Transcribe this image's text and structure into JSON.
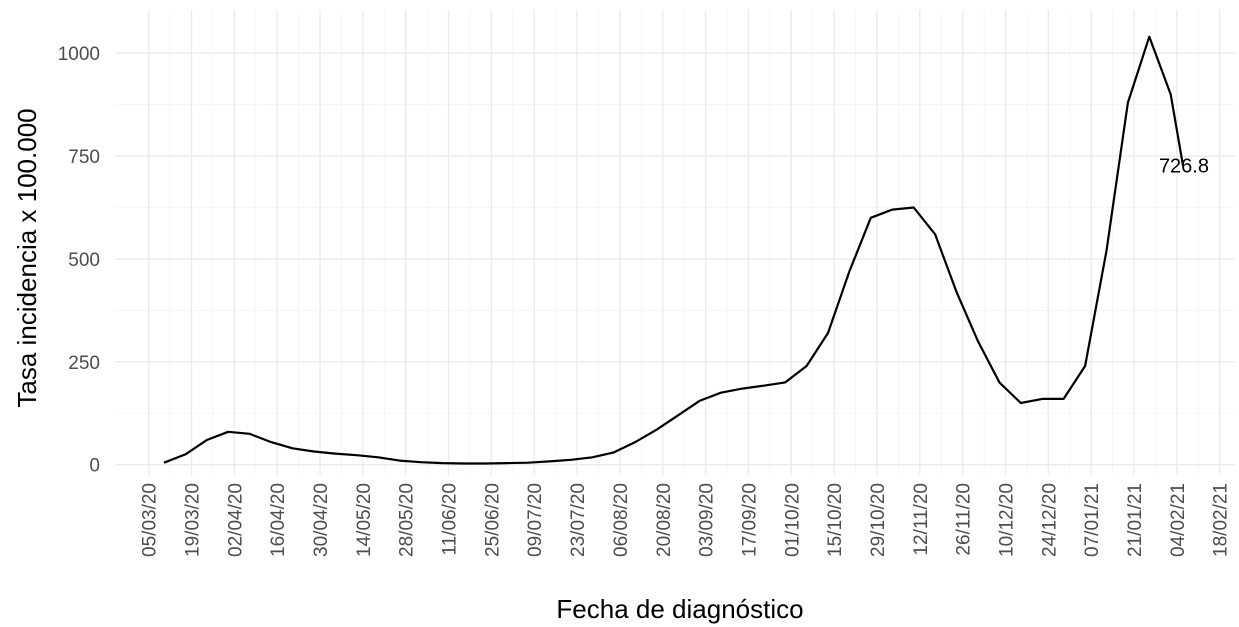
{
  "chart_data": {
    "type": "line",
    "x_label": "Fecha de diagnóstico",
    "y_label": "Tasa incidencia x 100.000",
    "x": [
      "10/03/20",
      "17/03/20",
      "24/03/20",
      "31/03/20",
      "07/04/20",
      "14/04/20",
      "21/04/20",
      "28/04/20",
      "05/05/20",
      "12/05/20",
      "19/05/20",
      "26/05/20",
      "02/06/20",
      "09/06/20",
      "16/06/20",
      "23/06/20",
      "30/06/20",
      "07/07/20",
      "14/07/20",
      "21/07/20",
      "28/07/20",
      "04/08/20",
      "11/08/20",
      "18/08/20",
      "25/08/20",
      "01/09/20",
      "08/09/20",
      "15/09/20",
      "22/09/20",
      "29/09/20",
      "06/10/20",
      "13/10/20",
      "20/10/20",
      "27/10/20",
      "03/11/20",
      "10/11/20",
      "17/11/20",
      "24/11/20",
      "01/12/20",
      "08/12/20",
      "15/12/20",
      "22/12/20",
      "29/12/20",
      "05/01/21",
      "12/01/21",
      "19/01/21",
      "26/01/21",
      "02/02/21",
      "06/02/21"
    ],
    "series": [
      {
        "name": "Tasa",
        "color": "#000000",
        "values": [
          5,
          25,
          60,
          80,
          75,
          55,
          40,
          32,
          27,
          23,
          18,
          10,
          6,
          4,
          3,
          3,
          4,
          5,
          8,
          12,
          18,
          30,
          55,
          85,
          120,
          155,
          175,
          185,
          192,
          200,
          240,
          320,
          470,
          600,
          620,
          625,
          560,
          420,
          300,
          200,
          150,
          160,
          160,
          240,
          520,
          880,
          1040,
          900,
          726.8
        ],
        "value_labels": {
          "48": "726.8"
        }
      }
    ],
    "xlim": [
      "23/02/20",
      "23/02/21"
    ],
    "xticks": [
      "05/03/20",
      "19/03/20",
      "02/04/20",
      "16/04/20",
      "30/04/20",
      "14/05/20",
      "28/05/20",
      "11/06/20",
      "25/06/20",
      "09/07/20",
      "23/07/20",
      "06/08/20",
      "20/08/20",
      "03/09/20",
      "17/09/20",
      "01/10/20",
      "15/10/20",
      "29/10/20",
      "12/11/20",
      "26/11/20",
      "10/12/20",
      "24/12/20",
      "07/01/21",
      "21/01/21",
      "04/02/21",
      "18/02/21"
    ],
    "ylim": [
      -25,
      1105
    ],
    "yticks": [
      0,
      250,
      500,
      750,
      1000
    ],
    "grid": true
  }
}
